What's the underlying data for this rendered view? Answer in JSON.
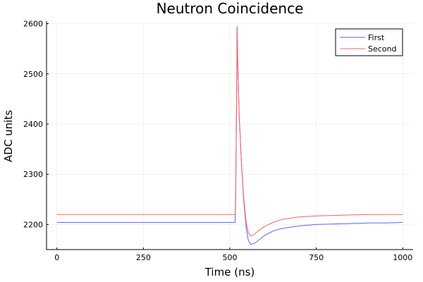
{
  "chart_data": {
    "type": "line",
    "title": "Neutron Coincidence",
    "xlabel": "Time (ns)",
    "ylabel": "ADC units",
    "xlim": [
      -30,
      1030
    ],
    "ylim": [
      2150,
      2605
    ],
    "xticks": [
      0,
      250,
      500,
      750,
      1000
    ],
    "yticks": [
      2200,
      2300,
      2400,
      2500,
      2600
    ],
    "grid": true,
    "legend_position": "top-right",
    "series": [
      {
        "name": "First",
        "color": "#6060ff",
        "points": [
          [
            0,
            2204
          ],
          [
            100,
            2204
          ],
          [
            200,
            2204
          ],
          [
            300,
            2204
          ],
          [
            400,
            2204
          ],
          [
            515,
            2204
          ],
          [
            517,
            2250
          ],
          [
            519,
            2400
          ],
          [
            521,
            2594
          ],
          [
            523,
            2520
          ],
          [
            527,
            2420
          ],
          [
            533,
            2330
          ],
          [
            540,
            2250
          ],
          [
            547,
            2195
          ],
          [
            553,
            2170
          ],
          [
            560,
            2160
          ],
          [
            570,
            2162
          ],
          [
            580,
            2167
          ],
          [
            600,
            2178
          ],
          [
            625,
            2187
          ],
          [
            650,
            2192
          ],
          [
            700,
            2197
          ],
          [
            750,
            2200
          ],
          [
            800,
            2201
          ],
          [
            850,
            2202
          ],
          [
            900,
            2203
          ],
          [
            950,
            2203
          ],
          [
            1000,
            2204
          ]
        ]
      },
      {
        "name": "Second",
        "color": "#ff6060",
        "points": [
          [
            0,
            2220
          ],
          [
            100,
            2220
          ],
          [
            200,
            2220
          ],
          [
            300,
            2220
          ],
          [
            400,
            2220
          ],
          [
            515,
            2220
          ],
          [
            517,
            2260
          ],
          [
            519,
            2410
          ],
          [
            521,
            2590
          ],
          [
            523,
            2520
          ],
          [
            527,
            2420
          ],
          [
            533,
            2330
          ],
          [
            540,
            2255
          ],
          [
            547,
            2205
          ],
          [
            553,
            2185
          ],
          [
            560,
            2177
          ],
          [
            570,
            2180
          ],
          [
            580,
            2186
          ],
          [
            600,
            2196
          ],
          [
            625,
            2204
          ],
          [
            650,
            2210
          ],
          [
            700,
            2215
          ],
          [
            750,
            2217
          ],
          [
            800,
            2218
          ],
          [
            850,
            2219
          ],
          [
            900,
            2220
          ],
          [
            950,
            2220
          ],
          [
            1000,
            2220
          ]
        ]
      }
    ]
  }
}
